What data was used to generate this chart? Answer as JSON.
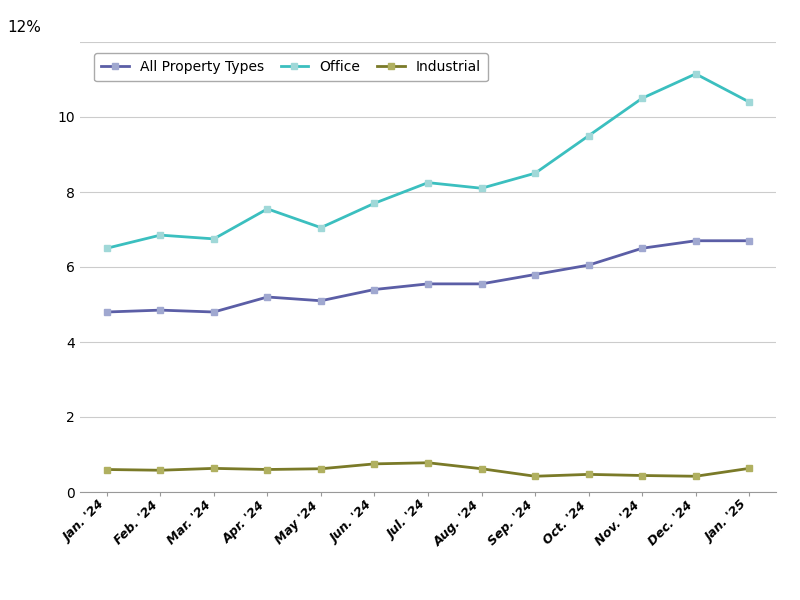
{
  "x_labels": [
    "Jan. '24",
    "Feb. '24",
    "Mar. '24",
    "Apr. '24",
    "May '24",
    "Jun. '24",
    "Jul. '24",
    "Aug. '24",
    "Sep. '24",
    "Oct. '24",
    "Nov. '24",
    "Dec. '24",
    "Jan. '25"
  ],
  "all_property": [
    4.8,
    4.85,
    4.8,
    5.2,
    5.1,
    5.4,
    5.55,
    5.55,
    5.8,
    6.05,
    6.5,
    6.7,
    6.7
  ],
  "office": [
    6.5,
    6.85,
    6.75,
    7.55,
    7.05,
    7.7,
    8.25,
    8.1,
    8.5,
    9.5,
    10.5,
    11.15,
    10.4
  ],
  "industrial": [
    0.6,
    0.58,
    0.63,
    0.6,
    0.62,
    0.75,
    0.78,
    0.62,
    0.42,
    0.47,
    0.44,
    0.42,
    0.63
  ],
  "all_property_color": "#5b5ea6",
  "office_color": "#3bbfbf",
  "industrial_color": "#7a7a28",
  "marker_color_all": "#a0a8d0",
  "marker_color_office": "#a0d8d8",
  "marker_color_industrial": "#b0b060",
  "ylim": [
    0,
    12
  ],
  "yticks": [
    0,
    2,
    4,
    6,
    8,
    10,
    12
  ],
  "ytick_labels": [
    "0",
    "2",
    "4",
    "6",
    "8",
    "10",
    ""
  ],
  "legend_labels": [
    "All Property Types",
    "Office",
    "Industrial"
  ],
  "background_color": "#ffffff",
  "grid_color": "#cccccc",
  "line_width": 2.0,
  "marker_size": 5
}
